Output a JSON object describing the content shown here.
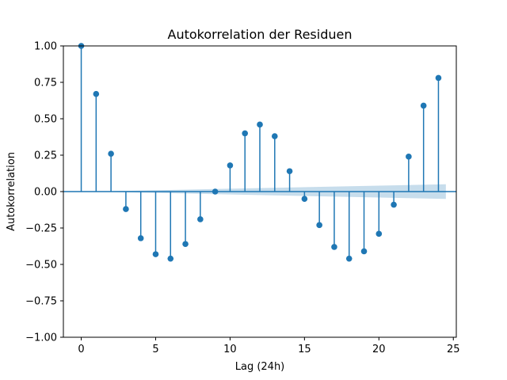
{
  "chart_data": {
    "type": "stem",
    "title": "Autokorrelation der Residuen",
    "xlabel": "Lag (24h)",
    "ylabel": "Autokorrelation",
    "xlim": [
      -1.2,
      25.2
    ],
    "ylim": [
      -1.0,
      1.0
    ],
    "xticks": [
      0,
      5,
      10,
      15,
      20,
      25
    ],
    "yticks": [
      -1.0,
      -0.75,
      -0.5,
      -0.25,
      0.0,
      0.25,
      0.5,
      0.75,
      1.0
    ],
    "xtick_labels": [
      "0",
      "5",
      "10",
      "15",
      "20",
      "25"
    ],
    "ytick_labels": [
      "−1.00",
      "−0.75",
      "−0.50",
      "−0.25",
      "0.00",
      "0.25",
      "0.50",
      "0.75",
      "1.00"
    ],
    "lags": [
      0,
      1,
      2,
      3,
      4,
      5,
      6,
      7,
      8,
      9,
      10,
      11,
      12,
      13,
      14,
      15,
      16,
      17,
      18,
      19,
      20,
      21,
      22,
      23,
      24
    ],
    "values": [
      1.0,
      0.67,
      0.26,
      -0.12,
      -0.32,
      -0.43,
      -0.46,
      -0.36,
      -0.19,
      0.0,
      0.18,
      0.4,
      0.46,
      0.38,
      0.14,
      -0.05,
      -0.23,
      -0.38,
      -0.46,
      -0.41,
      -0.29,
      -0.09,
      0.24,
      0.59,
      0.78
    ],
    "confidence_band": {
      "lags": [
        0.5,
        24.5
      ],
      "upper": [
        0.0,
        0.05
      ],
      "lower": [
        0.0,
        -0.05
      ]
    },
    "grid": false,
    "legend": false,
    "colors": {
      "stem": "#1f77b4",
      "band": "#1f77b4"
    }
  }
}
